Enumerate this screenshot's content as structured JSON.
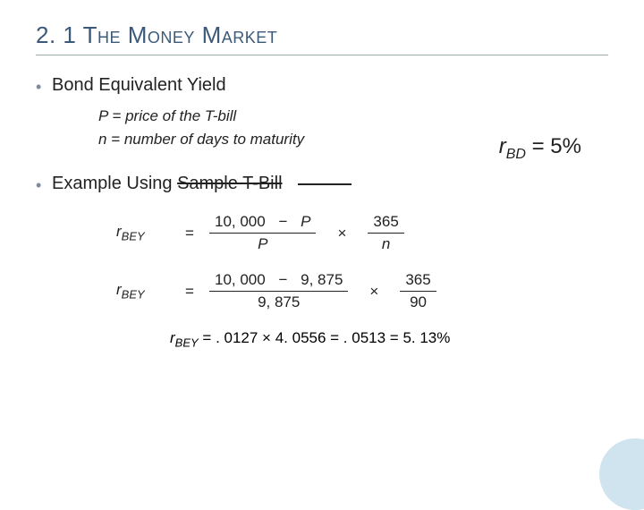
{
  "title": "2. 1 The Money Market",
  "bullet1": "Bond Equivalent Yield",
  "def_p": "P = price of the T-bill",
  "def_n": "n = number of days to maturity",
  "rbd_r": "r",
  "rbd_sub": "BD",
  "rbd_eq": "= 5%",
  "bullet2_lead": "Example Using ",
  "bullet2_strike": "Sample T-Bill",
  "lhs_r": "r",
  "lhs_sub": "BEY",
  "eq_sign": "=",
  "f1_num_a": "10, 000",
  "minus": "−",
  "f1_num_b": "P",
  "f1_den": "P",
  "times": "×",
  "f1b_num": "365",
  "f1b_den": "n",
  "f2_num_a": "10, 000",
  "f2_num_b": "9, 875",
  "f2_den": "9, 875",
  "f2b_num": "365",
  "f2b_den": "90",
  "result": "= . 0127 × 4. 0556 = . 0513 = 5. 13%",
  "colors": {
    "title": "#3b5a7a",
    "circle": "#cfe4ef",
    "rule": "#9aa"
  }
}
